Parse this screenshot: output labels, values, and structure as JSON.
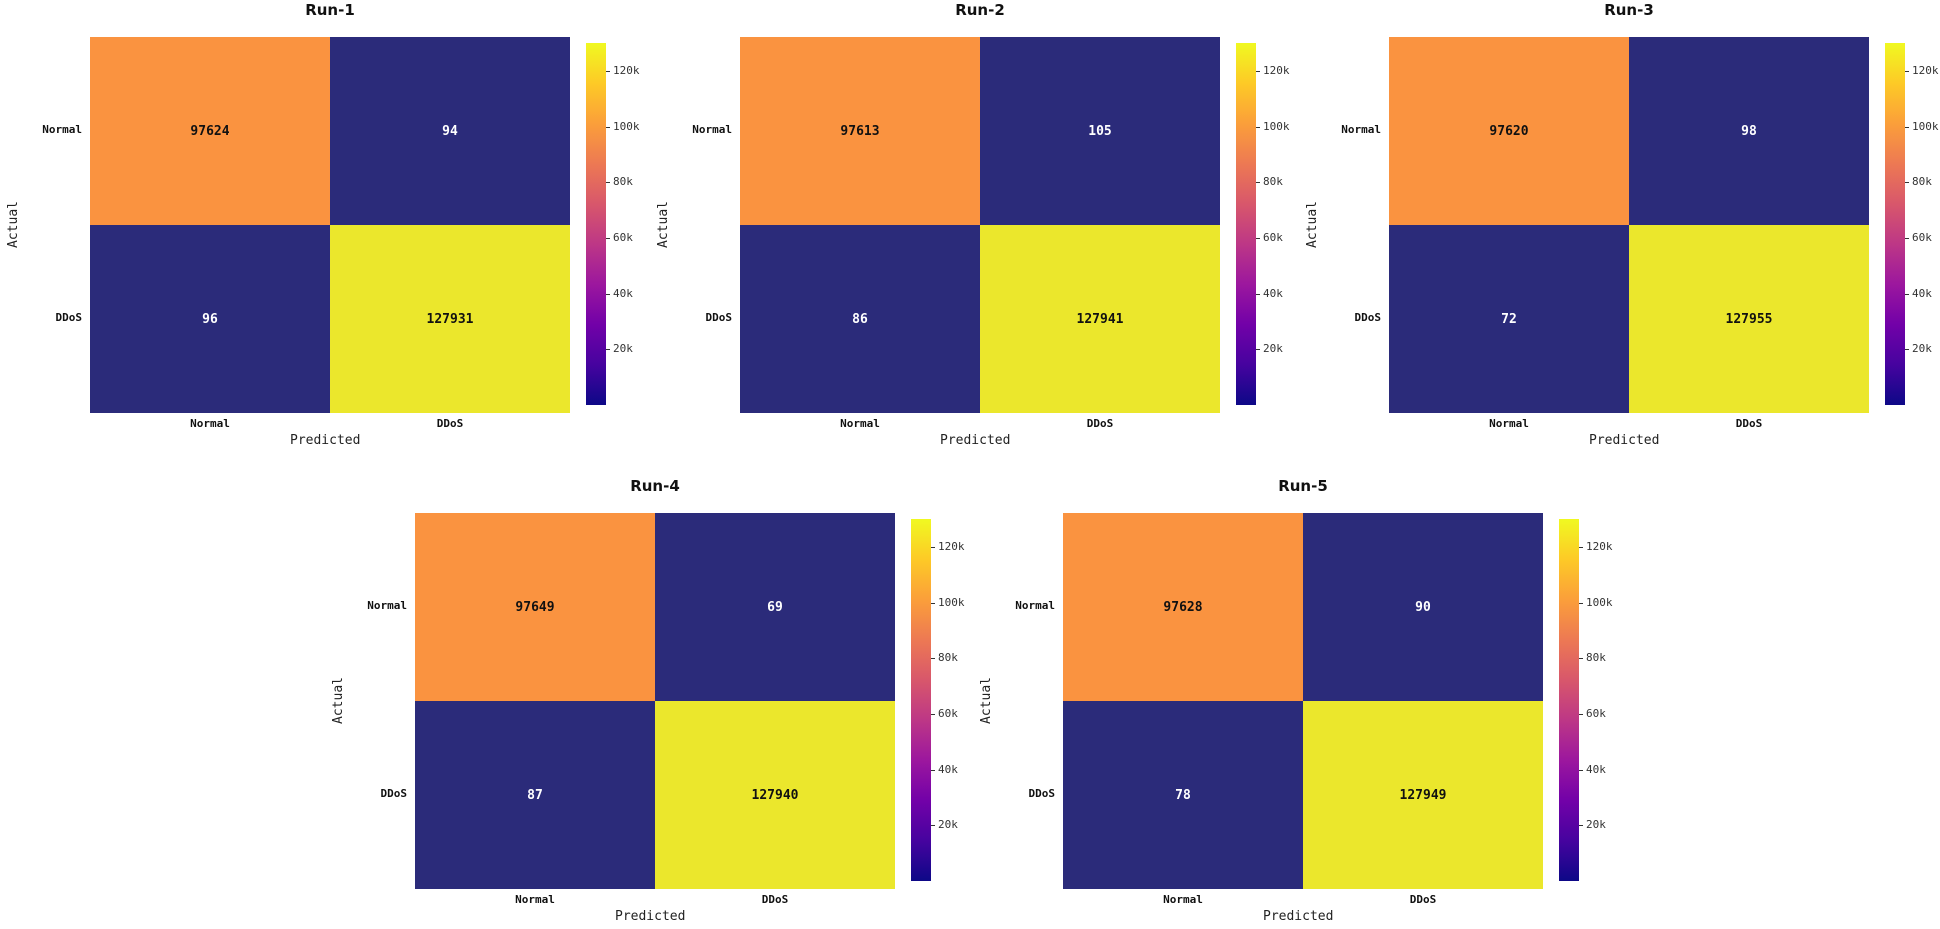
{
  "chart_data": [
    {
      "type": "heatmap",
      "title": "Run-1",
      "xlabel": "Predicted",
      "ylabel": "Actual",
      "x_categories": [
        "Normal",
        "DDoS"
      ],
      "y_categories": [
        "Normal",
        "DDoS"
      ],
      "values": [
        [
          97624,
          94
        ],
        [
          96,
          127931
        ]
      ],
      "colorbar": {
        "ticks": [
          20000,
          40000,
          60000,
          80000,
          100000,
          120000
        ],
        "tick_labels": [
          "20k",
          "40k",
          "60k",
          "80k",
          "100k",
          "120k"
        ],
        "range": [
          0,
          130000
        ]
      }
    },
    {
      "type": "heatmap",
      "title": "Run-2",
      "xlabel": "Predicted",
      "ylabel": "Actual",
      "x_categories": [
        "Normal",
        "DDoS"
      ],
      "y_categories": [
        "Normal",
        "DDoS"
      ],
      "values": [
        [
          97613,
          105
        ],
        [
          86,
          127941
        ]
      ],
      "colorbar": {
        "ticks": [
          20000,
          40000,
          60000,
          80000,
          100000,
          120000
        ],
        "tick_labels": [
          "20k",
          "40k",
          "60k",
          "80k",
          "100k",
          "120k"
        ],
        "range": [
          0,
          130000
        ]
      }
    },
    {
      "type": "heatmap",
      "title": "Run-3",
      "xlabel": "Predicted",
      "ylabel": "Actual",
      "x_categories": [
        "Normal",
        "DDoS"
      ],
      "y_categories": [
        "Normal",
        "DDoS"
      ],
      "values": [
        [
          97620,
          98
        ],
        [
          72,
          127955
        ]
      ],
      "colorbar": {
        "ticks": [
          20000,
          40000,
          60000,
          80000,
          100000,
          120000
        ],
        "tick_labels": [
          "20k",
          "40k",
          "60k",
          "80k",
          "100k",
          "120k"
        ],
        "range": [
          0,
          130000
        ]
      }
    },
    {
      "type": "heatmap",
      "title": "Run-4",
      "xlabel": "Predicted",
      "ylabel": "Actual",
      "x_categories": [
        "Normal",
        "DDoS"
      ],
      "y_categories": [
        "Normal",
        "DDoS"
      ],
      "values": [
        [
          97649,
          69
        ],
        [
          87,
          127940
        ]
      ],
      "colorbar": {
        "ticks": [
          20000,
          40000,
          60000,
          80000,
          100000,
          120000
        ],
        "tick_labels": [
          "20k",
          "40k",
          "60k",
          "80k",
          "100k",
          "120k"
        ],
        "range": [
          0,
          130000
        ]
      }
    },
    {
      "type": "heatmap",
      "title": "Run-5",
      "xlabel": "Predicted",
      "ylabel": "Actual",
      "x_categories": [
        "Normal",
        "DDoS"
      ],
      "y_categories": [
        "Normal",
        "DDoS"
      ],
      "values": [
        [
          97628,
          90
        ],
        [
          78,
          127949
        ]
      ],
      "colorbar": {
        "ticks": [
          20000,
          40000,
          60000,
          80000,
          100000,
          120000
        ],
        "tick_labels": [
          "20k",
          "40k",
          "60k",
          "80k",
          "100k",
          "120k"
        ],
        "range": [
          0,
          130000
        ]
      }
    }
  ],
  "colors": {
    "low": "#2b2b7a",
    "mid": "#fa9340",
    "high": "#ebe72c",
    "gradient": [
      "#0d0887",
      "#46039f",
      "#7201a8",
      "#9c179e",
      "#bd3786",
      "#d8576b",
      "#ed7953",
      "#fb9f3a",
      "#fdca26",
      "#f0f921"
    ]
  }
}
